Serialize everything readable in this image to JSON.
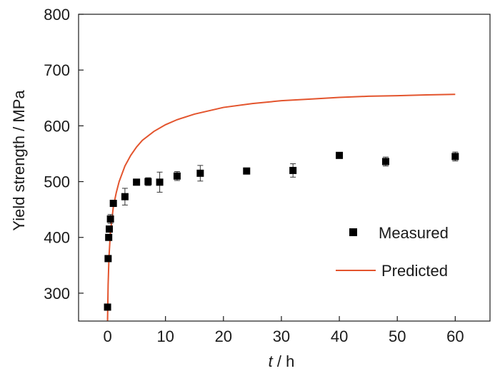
{
  "chart_data": {
    "type": "scatter",
    "xlabel_var": "t",
    "xlabel_unit": " / h",
    "ylabel": "Yield strength / MPa",
    "xlim": [
      -5,
      66
    ],
    "ylim": [
      250,
      800
    ],
    "xticks": [
      0,
      10,
      20,
      30,
      40,
      50,
      60
    ],
    "yticks": [
      300,
      400,
      500,
      600,
      700,
      800
    ],
    "grid": false,
    "legend_position": "right-middle",
    "series": [
      {
        "name": "Measured",
        "kind": "markers",
        "marker": "square",
        "color": "#000000",
        "points": [
          {
            "x": 0,
            "y": 275,
            "err": 3
          },
          {
            "x": 0.1,
            "y": 362,
            "err": 5
          },
          {
            "x": 0.2,
            "y": 400,
            "err": 5
          },
          {
            "x": 0.3,
            "y": 415,
            "err": 5
          },
          {
            "x": 0.5,
            "y": 433,
            "err": 8
          },
          {
            "x": 1,
            "y": 461,
            "err": 4
          },
          {
            "x": 3,
            "y": 473,
            "err": 15
          },
          {
            "x": 5,
            "y": 499,
            "err": 3
          },
          {
            "x": 7,
            "y": 500,
            "err": 7
          },
          {
            "x": 9,
            "y": 499,
            "err": 18
          },
          {
            "x": 12,
            "y": 510,
            "err": 8
          },
          {
            "x": 16,
            "y": 515,
            "err": 14
          },
          {
            "x": 24,
            "y": 519,
            "err": 4
          },
          {
            "x": 32,
            "y": 520,
            "err": 12
          },
          {
            "x": 40,
            "y": 547,
            "err": 4
          },
          {
            "x": 48,
            "y": 536,
            "err": 8
          },
          {
            "x": 60,
            "y": 545,
            "err": 8
          }
        ]
      },
      {
        "name": "Predicted",
        "kind": "line",
        "color": "#e3542d",
        "points": [
          [
            0,
            250
          ],
          [
            0.1,
            315
          ],
          [
            0.25,
            365
          ],
          [
            0.5,
            410
          ],
          [
            1,
            455
          ],
          [
            1.5,
            480
          ],
          [
            2,
            500
          ],
          [
            3,
            528
          ],
          [
            4,
            547
          ],
          [
            5,
            562
          ],
          [
            6,
            574
          ],
          [
            8,
            590
          ],
          [
            10,
            602
          ],
          [
            12,
            611
          ],
          [
            15,
            621
          ],
          [
            20,
            633
          ],
          [
            25,
            640
          ],
          [
            30,
            645
          ],
          [
            35,
            648
          ],
          [
            40,
            651
          ],
          [
            45,
            653
          ],
          [
            50,
            654
          ],
          [
            55,
            655.5
          ],
          [
            60,
            656.5
          ]
        ]
      }
    ]
  }
}
